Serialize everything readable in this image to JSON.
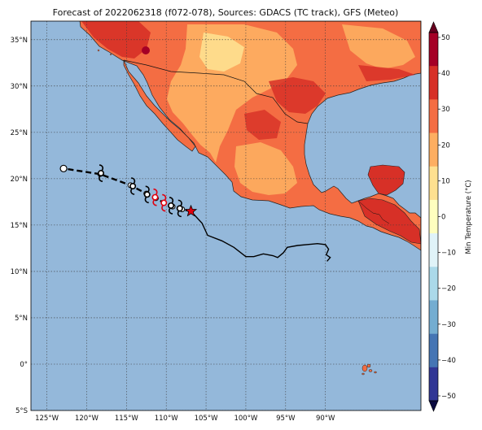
{
  "title": "Forecast of 2022062318 (f072-078), Sources: GDACS (TC track), GFS (Meteo)",
  "map": {
    "lon_range": [
      -127,
      -78
    ],
    "lat_range": [
      -5,
      37
    ],
    "lon_ticks": [
      {
        "value": -125,
        "label": "125°W"
      },
      {
        "value": -120,
        "label": "120°W"
      },
      {
        "value": -115,
        "label": "115°W"
      },
      {
        "value": -110,
        "label": "110°W"
      },
      {
        "value": -105,
        "label": "105°W"
      },
      {
        "value": -100,
        "label": "100°W"
      },
      {
        "value": -95,
        "label": "95°W"
      },
      {
        "value": -90,
        "label": "90°W"
      }
    ],
    "lat_ticks": [
      {
        "value": 35,
        "label": "35°N"
      },
      {
        "value": 30,
        "label": "30°N"
      },
      {
        "value": 25,
        "label": "25°N"
      },
      {
        "value": 20,
        "label": "20°N"
      },
      {
        "value": 15,
        "label": "15°N"
      },
      {
        "value": 10,
        "label": "10°N"
      },
      {
        "value": 5,
        "label": "5°N"
      },
      {
        "value": 0,
        "label": "0°"
      },
      {
        "value": -5,
        "label": "5°S"
      }
    ],
    "ocean_color": "#94b8da",
    "grid": true
  },
  "colorbar": {
    "label": "Min Temperature (°C)",
    "ticks": [
      "50",
      "40",
      "30",
      "20",
      "10",
      "0",
      "−10",
      "−20",
      "−30",
      "−40",
      "−50"
    ],
    "colors": [
      "#a50026",
      "#d73027",
      "#f46d43",
      "#fdae61",
      "#fee090",
      "#ffffbf",
      "#e0f3f8",
      "#abd9e9",
      "#74add1",
      "#4575b4",
      "#313695"
    ]
  },
  "track": {
    "observed": [
      {
        "lon": -106.9,
        "lat": 16.5
      },
      {
        "lon": -105.5,
        "lat": 15.2
      },
      {
        "lon": -104.8,
        "lat": 13.9
      },
      {
        "lon": -103.0,
        "lat": 13.3
      },
      {
        "lon": -101.5,
        "lat": 12.6
      },
      {
        "lon": -100.0,
        "lat": 11.6
      },
      {
        "lon": -99.0,
        "lat": 11.6
      },
      {
        "lon": -97.8,
        "lat": 11.9
      },
      {
        "lon": -96.6,
        "lat": 11.7
      },
      {
        "lon": -96.0,
        "lat": 11.5
      },
      {
        "lon": -95.3,
        "lat": 12.0
      },
      {
        "lon": -94.8,
        "lat": 12.6
      },
      {
        "lon": -93.5,
        "lat": 12.8
      },
      {
        "lon": -91.0,
        "lat": 13.0
      },
      {
        "lon": -90.0,
        "lat": 12.9
      },
      {
        "lon": -89.6,
        "lat": 12.4
      },
      {
        "lon": -89.9,
        "lat": 11.8
      },
      {
        "lon": -89.4,
        "lat": 11.5
      },
      {
        "lon": -89.8,
        "lat": 11.1
      }
    ],
    "forecast": [
      {
        "lon": -106.9,
        "lat": 16.5
      },
      {
        "lon": -108.0,
        "lat": 16.7
      },
      {
        "lon": -109.2,
        "lat": 17.0
      },
      {
        "lon": -110.3,
        "lat": 17.4
      },
      {
        "lon": -111.3,
        "lat": 17.9
      },
      {
        "lon": -112.5,
        "lat": 18.4
      },
      {
        "lon": -114.5,
        "lat": 19.3
      },
      {
        "lon": -118.3,
        "lat": 20.5
      },
      {
        "lon": -122.9,
        "lat": 21.1
      }
    ],
    "storm_symbols": [
      {
        "lon": -108.3,
        "lat": 16.8,
        "color": "black"
      },
      {
        "lon": -109.4,
        "lat": 17.1,
        "color": "black"
      },
      {
        "lon": -110.3,
        "lat": 17.4,
        "color": "red"
      },
      {
        "lon": -111.4,
        "lat": 18.0,
        "color": "red"
      },
      {
        "lon": -112.4,
        "lat": 18.3,
        "color": "black"
      },
      {
        "lon": -114.2,
        "lat": 19.2,
        "color": "black"
      },
      {
        "lon": -118.2,
        "lat": 20.6,
        "color": "black"
      }
    ],
    "current_position": {
      "lon": -106.9,
      "lat": 16.5
    },
    "end_position": {
      "lon": -122.9,
      "lat": 21.1
    }
  }
}
